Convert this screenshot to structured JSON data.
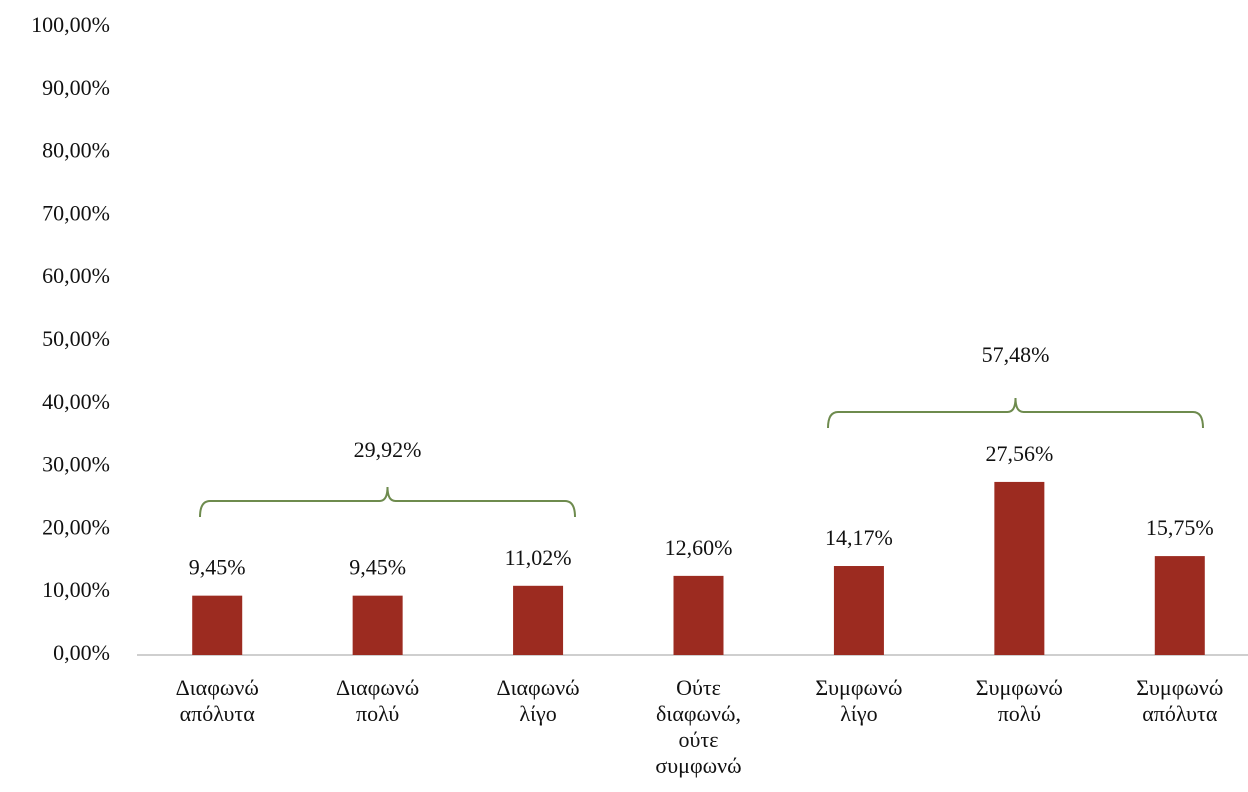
{
  "chart_data": {
    "type": "bar",
    "categories": [
      "Διαφωνώ απόλυτα",
      "Διαφωνώ πολύ",
      "Διαφωνώ λίγο",
      "Ούτε διαφωνώ, ούτε συμφωνώ",
      "Συμφωνώ λίγο",
      "Συμφωνώ πολύ",
      "Συμφωνώ απόλυτα"
    ],
    "values": [
      9.45,
      9.45,
      11.02,
      12.6,
      14.17,
      27.56,
      15.75
    ],
    "value_labels": [
      "9,45%",
      "9,45%",
      "11,02%",
      "12,60%",
      "14,17%",
      "27,56%",
      "15,75%"
    ],
    "color": "#9c2b20",
    "ylim": [
      0,
      100
    ],
    "yticks": [
      {
        "value": 0,
        "label": "0,00%"
      },
      {
        "value": 10,
        "label": "10,00%"
      },
      {
        "value": 20,
        "label": "20,00%"
      },
      {
        "value": 30,
        "label": "30,00%"
      },
      {
        "value": 40,
        "label": "40,00%"
      },
      {
        "value": 50,
        "label": "50,00%"
      },
      {
        "value": 60,
        "label": "60,00%"
      },
      {
        "value": 70,
        "label": "70,00%"
      },
      {
        "value": 80,
        "label": "80,00%"
      },
      {
        "value": 90,
        "label": "90,00%"
      },
      {
        "value": 100,
        "label": "100,00%"
      }
    ],
    "grid": false,
    "annotations": [
      "29,92%",
      "57,48%"
    ]
  }
}
